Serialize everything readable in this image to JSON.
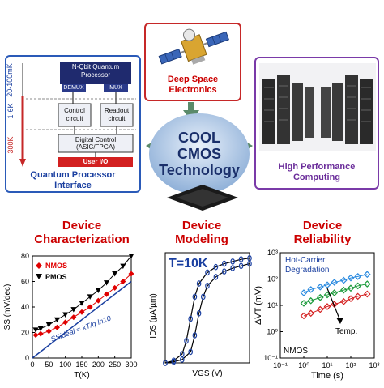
{
  "center": {
    "line1": "COOL",
    "line2": "CMOS",
    "line3": "Technology"
  },
  "deep_space": {
    "line1": "Deep Space",
    "line2": "Electronics"
  },
  "hpc": {
    "line1": "High Performance",
    "line2": "Computing"
  },
  "qpi": {
    "caption_line1": "Quantum Processor",
    "caption_line2": "Interface",
    "temp_labels": [
      "20-100mK",
      "1-6K",
      "300K"
    ],
    "qubit_title_line1": "N-Qbit Quantum",
    "qubit_title_line2": "Processor",
    "demux": "DEMUX",
    "mux": "MUX",
    "control_line1": "Control",
    "control_line2": "circuit",
    "readout_line1": "Readout",
    "readout_line2": "circuit",
    "digital_line1": "Digital Control",
    "digital_line2": "(ASIC/FPGA)",
    "user_io": "User I/O"
  },
  "sections": {
    "char_line1": "Device",
    "char_line2": "Characterization",
    "model_line1": "Device",
    "model_line2": "Modeling",
    "rel_line1": "Device",
    "rel_line2": "Reliability"
  },
  "colors": {
    "red": "#cc0000",
    "blue": "#1a3fa0",
    "purple": "#6a2c9a",
    "green_arrow": "#5a8a6a"
  },
  "chart_data": [
    {
      "type": "scatter",
      "title": "",
      "xlabel": "T(K)",
      "ylabel": "SS (mV/dec)",
      "xlim": [
        0,
        300
      ],
      "ylim": [
        0,
        80
      ],
      "xticks": [
        0,
        50,
        100,
        150,
        200,
        250,
        300
      ],
      "yticks": [
        0,
        20,
        40,
        60,
        80
      ],
      "legend": [
        "NMOS",
        "PMOS"
      ],
      "annotation": "SSideal = kT/q ln10",
      "series": [
        {
          "name": "NMOS",
          "color": "#e00000",
          "x": [
            10,
            25,
            50,
            75,
            100,
            125,
            150,
            175,
            200,
            225,
            250,
            275,
            300
          ],
          "y": [
            18,
            19,
            21,
            24,
            28,
            32,
            36,
            40,
            45,
            50,
            55,
            60,
            66
          ]
        },
        {
          "name": "PMOS",
          "color": "#000000",
          "x": [
            10,
            25,
            50,
            75,
            100,
            125,
            150,
            175,
            200,
            225,
            250,
            275,
            300
          ],
          "y": [
            22,
            23,
            26,
            30,
            34,
            38,
            43,
            48,
            53,
            59,
            66,
            72,
            80
          ]
        },
        {
          "name": "SSideal",
          "color": "#1a3fa0",
          "x": [
            0,
            300
          ],
          "y": [
            0,
            60
          ]
        }
      ]
    },
    {
      "type": "line",
      "title": "T=10K",
      "xlabel": "VGS (V)",
      "ylabel": "IDS (µA/µm)",
      "series": [
        {
          "name": "curve-left",
          "x": [
            0.0,
            0.1,
            0.2,
            0.25,
            0.3,
            0.35,
            0.4,
            0.5,
            0.6,
            0.7,
            0.8,
            0.9,
            1.0
          ],
          "y": [
            0.0,
            0.02,
            0.08,
            0.2,
            0.4,
            0.6,
            0.72,
            0.82,
            0.87,
            0.9,
            0.92,
            0.94,
            0.95
          ]
        },
        {
          "name": "curve-right",
          "x": [
            0.0,
            0.1,
            0.2,
            0.3,
            0.35,
            0.4,
            0.45,
            0.5,
            0.6,
            0.7,
            0.8,
            0.9,
            1.0
          ],
          "y": [
            0.0,
            0.01,
            0.03,
            0.1,
            0.25,
            0.45,
            0.6,
            0.7,
            0.78,
            0.83,
            0.86,
            0.88,
            0.9
          ]
        }
      ]
    },
    {
      "type": "scatter",
      "title": "",
      "xlabel": "Time (s)",
      "ylabel": "ΔVT (mV)",
      "log_scale": true,
      "xlim": [
        0.1,
        1000
      ],
      "ylim": [
        0.1,
        1000
      ],
      "annotations": [
        "Hot-Carrier",
        "Degradation",
        "Temp.",
        "NMOS"
      ],
      "series": [
        {
          "name": "blue",
          "color": "#2a8adf",
          "x": [
            1,
            2,
            5,
            10,
            20,
            50,
            100,
            200,
            500
          ],
          "y": [
            30,
            40,
            50,
            60,
            75,
            90,
            110,
            125,
            150
          ]
        },
        {
          "name": "green",
          "color": "#1a9a3a",
          "x": [
            1,
            2,
            5,
            10,
            20,
            50,
            100,
            200,
            500
          ],
          "y": [
            12,
            15,
            20,
            25,
            30,
            38,
            45,
            55,
            65
          ]
        },
        {
          "name": "red",
          "color": "#d42020",
          "x": [
            1,
            2,
            5,
            10,
            20,
            50,
            100,
            200,
            500
          ],
          "y": [
            4,
            5,
            7,
            9,
            11,
            14,
            18,
            22,
            27
          ]
        }
      ]
    }
  ]
}
